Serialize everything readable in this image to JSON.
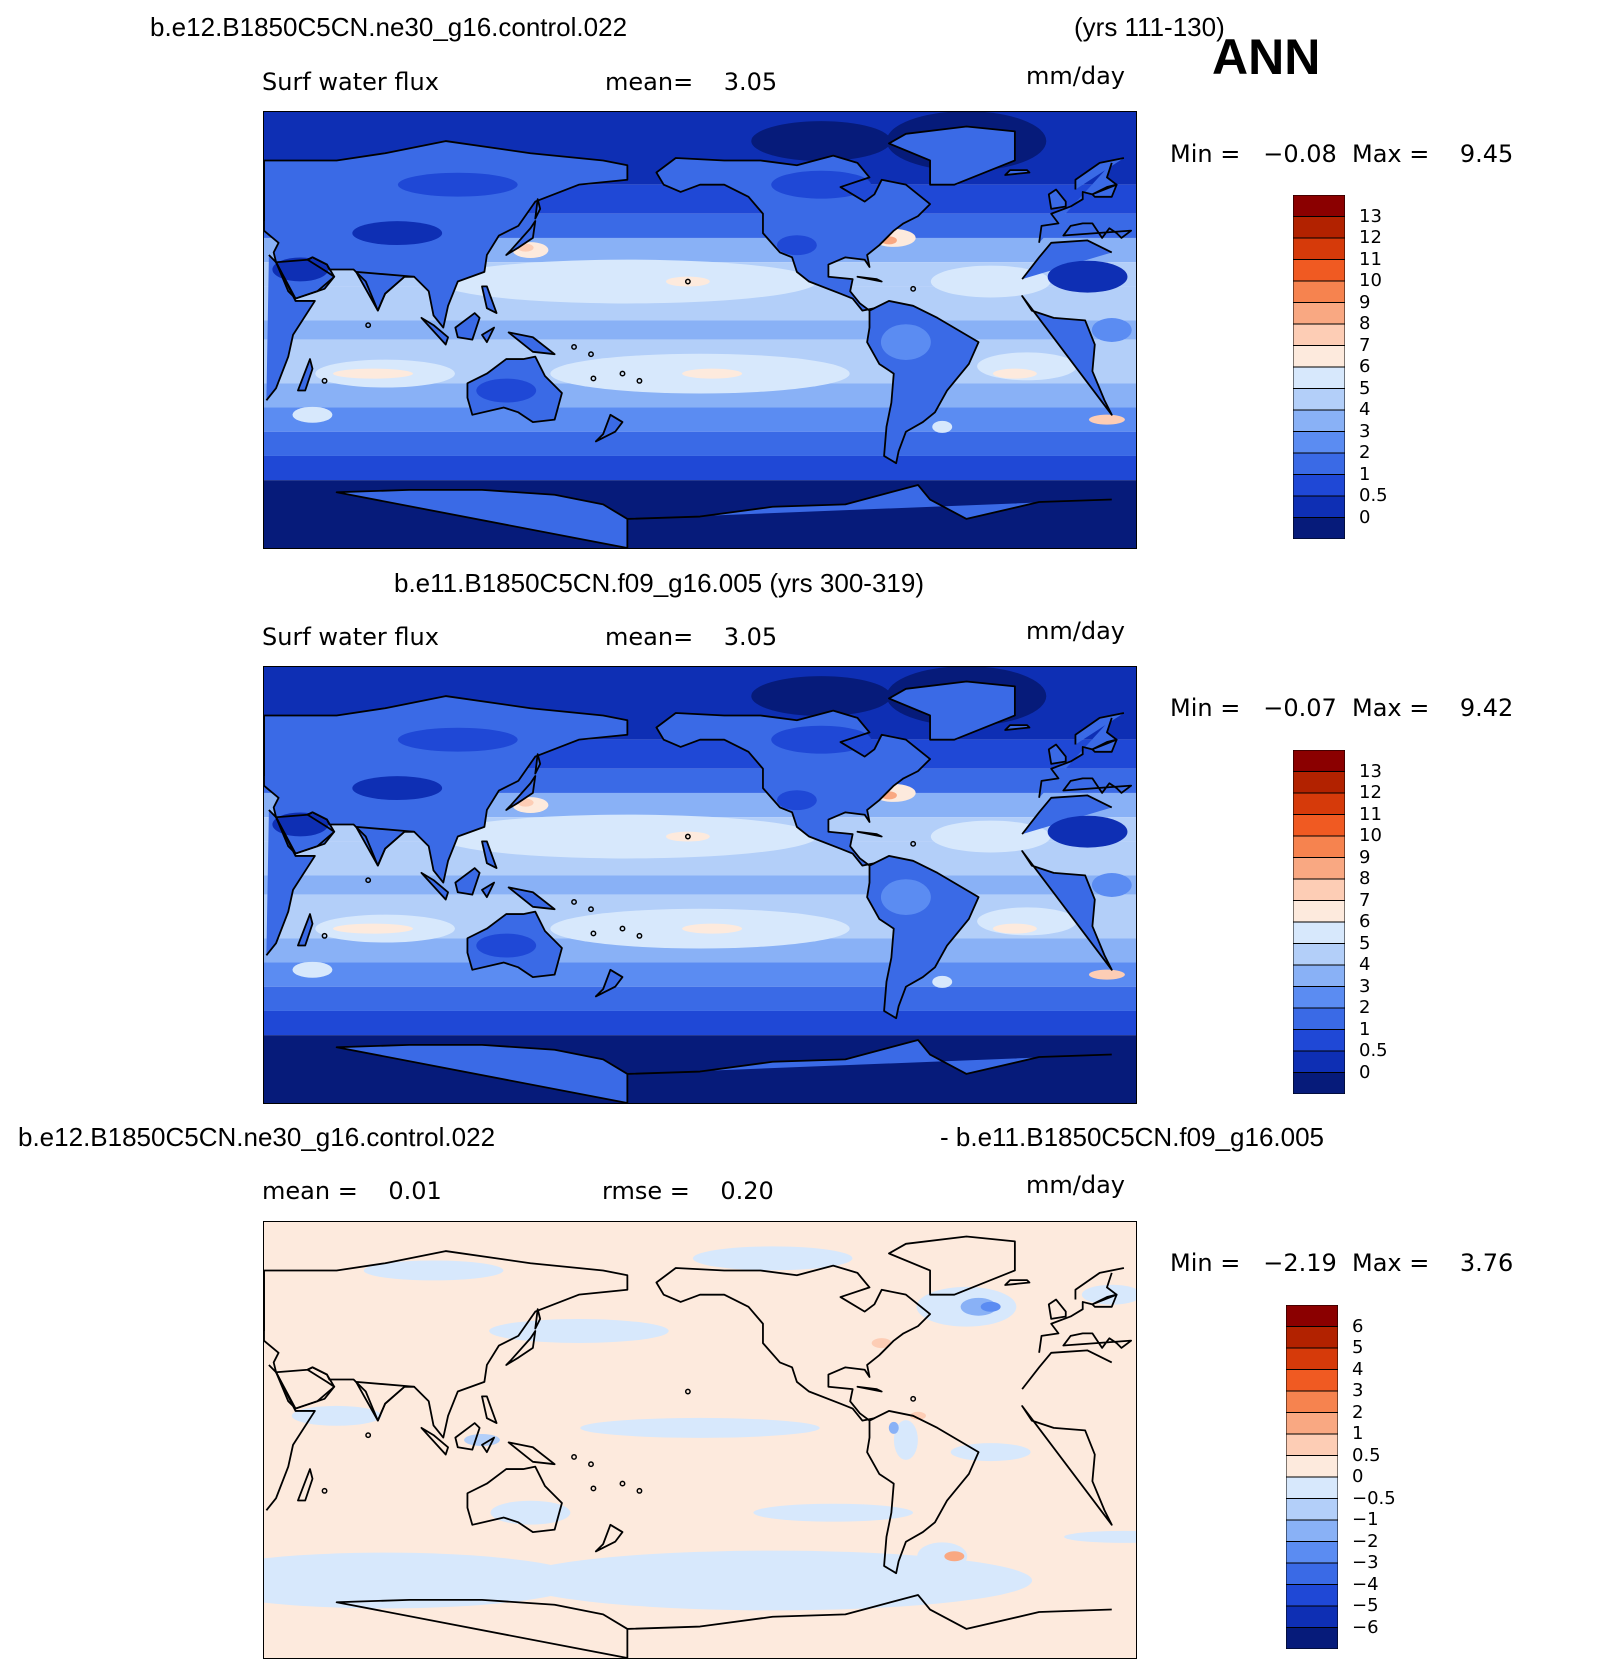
{
  "season": "ANN",
  "panels": [
    {
      "case": "b.e12.B1850C5CN.ne30_g16.control.022",
      "years": "(yrs 111-130)",
      "left_label": "Surf water flux",
      "mid_label": "mean=    3.05",
      "units": "mm/day",
      "minmax": "Min =   −0.08  Max =    9.45",
      "colorbar": {
        "levels": [
          "13",
          "12",
          "11",
          "10",
          "9",
          "8",
          "7",
          "6",
          "5",
          "4",
          "3",
          "2",
          "1",
          "0.5",
          "0"
        ],
        "colors": [
          "#8b0000",
          "#b22200",
          "#d63a0a",
          "#f05a22",
          "#f6834f",
          "#f9a882",
          "#fdcdb5",
          "#fdeadd",
          "#d7e8fc",
          "#b3cff9",
          "#89b1f6",
          "#5b8cf2",
          "#3a6ae6",
          "#1f48d6",
          "#0e2fb4",
          "#061b7a"
        ]
      },
      "field": "base"
    },
    {
      "case": "b.e11.B1850C5CN.f09_g16.005 (yrs 300-319)",
      "left_label": "Surf water flux",
      "mid_label": "mean=    3.05",
      "units": "mm/day",
      "minmax": "Min =   −0.07  Max =    9.42",
      "colorbar": {
        "levels": [
          "13",
          "12",
          "11",
          "10",
          "9",
          "8",
          "7",
          "6",
          "5",
          "4",
          "3",
          "2",
          "1",
          "0.5",
          "0"
        ],
        "colors": [
          "#8b0000",
          "#b22200",
          "#d63a0a",
          "#f05a22",
          "#f6834f",
          "#f9a882",
          "#fdcdb5",
          "#fdeadd",
          "#d7e8fc",
          "#b3cff9",
          "#89b1f6",
          "#5b8cf2",
          "#3a6ae6",
          "#1f48d6",
          "#0e2fb4",
          "#061b7a"
        ]
      },
      "field": "base"
    },
    {
      "case_left": "b.e12.B1850C5CN.ne30_g16.control.022",
      "case_right": "- b.e11.B1850C5CN.f09_g16.005",
      "left_label": "mean =    0.01",
      "mid_label": "rmse =    0.20",
      "units": "mm/day",
      "minmax": "Min =   −2.19  Max =    3.76",
      "colorbar": {
        "levels": [
          "6",
          "5",
          "4",
          "3",
          "2",
          "1",
          "0.5",
          "0",
          "−0.5",
          "−1",
          "−2",
          "−3",
          "−4",
          "−5",
          "−6"
        ],
        "colors": [
          "#8b0000",
          "#b22200",
          "#d63a0a",
          "#f05a22",
          "#f6834f",
          "#f9a882",
          "#fdcdb5",
          "#fdeadd",
          "#d7e8fc",
          "#b3cff9",
          "#89b1f6",
          "#5b8cf2",
          "#3a6ae6",
          "#1f48d6",
          "#0e2fb4",
          "#061b7a"
        ]
      },
      "field": "diff"
    }
  ]
}
